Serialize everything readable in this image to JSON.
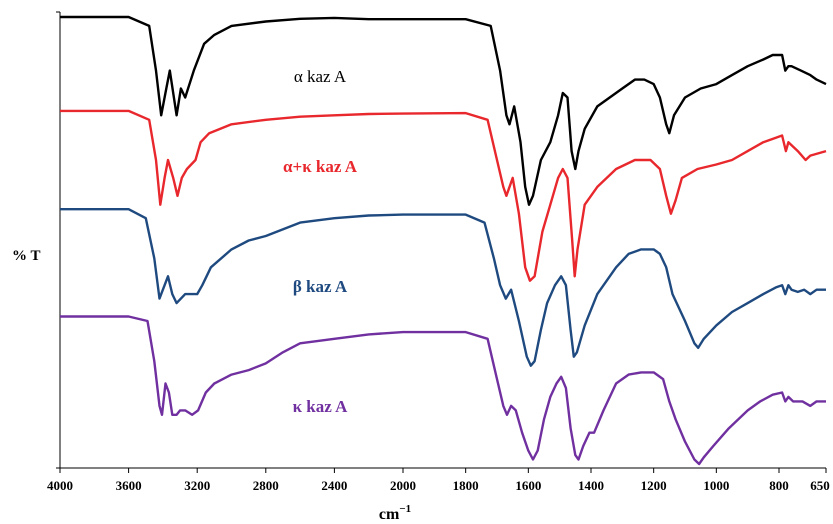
{
  "chart_data": {
    "type": "line",
    "xlabel": "cm",
    "xlabel_sup": "−1",
    "ylabel": "% T",
    "xlim": [
      4000,
      650
    ],
    "x_ticks": [
      4000,
      3600,
      3200,
      2800,
      2400,
      2000,
      1800,
      1600,
      1400,
      1200,
      1000,
      800,
      650
    ],
    "grid": false,
    "series": [
      {
        "name": "α kaz A",
        "color": "#000000",
        "label_weight": "normal",
        "values": [
          [
            4000,
            100
          ],
          [
            3600,
            100
          ],
          [
            3480,
            98
          ],
          [
            3440,
            88
          ],
          [
            3410,
            78
          ],
          [
            3380,
            84
          ],
          [
            3360,
            88
          ],
          [
            3320,
            78
          ],
          [
            3295,
            84
          ],
          [
            3270,
            82
          ],
          [
            3220,
            88
          ],
          [
            3160,
            94
          ],
          [
            3100,
            96
          ],
          [
            3000,
            98
          ],
          [
            2800,
            99
          ],
          [
            2600,
            99.6
          ],
          [
            2400,
            99.8
          ],
          [
            2200,
            99.5
          ],
          [
            2000,
            99.5
          ],
          [
            1800,
            99.5
          ],
          [
            1720,
            98
          ],
          [
            1690,
            88
          ],
          [
            1670,
            78
          ],
          [
            1660,
            76
          ],
          [
            1645,
            80
          ],
          [
            1625,
            72
          ],
          [
            1610,
            62
          ],
          [
            1598,
            58
          ],
          [
            1585,
            60
          ],
          [
            1560,
            68
          ],
          [
            1530,
            72
          ],
          [
            1505,
            78
          ],
          [
            1490,
            83
          ],
          [
            1475,
            82
          ],
          [
            1462,
            70
          ],
          [
            1450,
            66
          ],
          [
            1440,
            70
          ],
          [
            1420,
            75
          ],
          [
            1380,
            80
          ],
          [
            1300,
            84
          ],
          [
            1260,
            86
          ],
          [
            1230,
            86
          ],
          [
            1200,
            85
          ],
          [
            1180,
            82
          ],
          [
            1160,
            76
          ],
          [
            1150,
            74
          ],
          [
            1135,
            78
          ],
          [
            1100,
            82
          ],
          [
            1050,
            84
          ],
          [
            1000,
            85
          ],
          [
            950,
            87
          ],
          [
            900,
            89
          ],
          [
            850,
            90.5
          ],
          [
            820,
            91.5
          ],
          [
            790,
            91.5
          ],
          [
            780,
            88
          ],
          [
            770,
            89
          ],
          [
            760,
            89
          ],
          [
            730,
            88
          ],
          [
            700,
            87
          ],
          [
            680,
            86
          ],
          [
            650,
            85
          ]
        ]
      },
      {
        "name": "α+κ kaz A",
        "color": "#e8282d",
        "label_weight": "bold",
        "values": [
          [
            4000,
            79
          ],
          [
            3600,
            79
          ],
          [
            3480,
            77
          ],
          [
            3440,
            68
          ],
          [
            3415,
            58
          ],
          [
            3390,
            64
          ],
          [
            3370,
            68
          ],
          [
            3340,
            64
          ],
          [
            3315,
            60
          ],
          [
            3290,
            64
          ],
          [
            3260,
            66
          ],
          [
            3210,
            68
          ],
          [
            3180,
            72
          ],
          [
            3130,
            74
          ],
          [
            3000,
            76
          ],
          [
            2800,
            77
          ],
          [
            2600,
            77.7
          ],
          [
            2400,
            78
          ],
          [
            2200,
            78.3
          ],
          [
            2000,
            78.4
          ],
          [
            1800,
            78.5
          ],
          [
            1730,
            77
          ],
          [
            1700,
            68
          ],
          [
            1680,
            62
          ],
          [
            1670,
            60
          ],
          [
            1650,
            64
          ],
          [
            1630,
            56
          ],
          [
            1610,
            44
          ],
          [
            1595,
            41
          ],
          [
            1580,
            42
          ],
          [
            1555,
            52
          ],
          [
            1530,
            58
          ],
          [
            1505,
            64
          ],
          [
            1490,
            66
          ],
          [
            1475,
            64
          ],
          [
            1460,
            50
          ],
          [
            1452,
            42
          ],
          [
            1443,
            48
          ],
          [
            1420,
            58
          ],
          [
            1380,
            62
          ],
          [
            1320,
            66
          ],
          [
            1260,
            68
          ],
          [
            1210,
            68
          ],
          [
            1180,
            66
          ],
          [
            1160,
            60
          ],
          [
            1145,
            56
          ],
          [
            1130,
            59
          ],
          [
            1110,
            64
          ],
          [
            1060,
            66
          ],
          [
            1000,
            67
          ],
          [
            950,
            68
          ],
          [
            900,
            70
          ],
          [
            850,
            72
          ],
          [
            810,
            73
          ],
          [
            790,
            73.5
          ],
          [
            778,
            70
          ],
          [
            770,
            72
          ],
          [
            740,
            70
          ],
          [
            715,
            68
          ],
          [
            700,
            69
          ],
          [
            650,
            70
          ]
        ]
      },
      {
        "name": "β kaz A",
        "color": "#1f4a80",
        "label_weight": "bold",
        "values": [
          [
            4000,
            57
          ],
          [
            3600,
            57
          ],
          [
            3500,
            55
          ],
          [
            3450,
            46
          ],
          [
            3420,
            37
          ],
          [
            3390,
            40
          ],
          [
            3370,
            42
          ],
          [
            3345,
            38
          ],
          [
            3320,
            36
          ],
          [
            3295,
            37
          ],
          [
            3270,
            38
          ],
          [
            3200,
            38
          ],
          [
            3170,
            40
          ],
          [
            3120,
            44
          ],
          [
            3000,
            48
          ],
          [
            2900,
            50
          ],
          [
            2800,
            51
          ],
          [
            2600,
            54
          ],
          [
            2400,
            55
          ],
          [
            2200,
            55.6
          ],
          [
            2000,
            55.8
          ],
          [
            1800,
            55.8
          ],
          [
            1740,
            54
          ],
          [
            1710,
            46
          ],
          [
            1690,
            40
          ],
          [
            1672,
            37
          ],
          [
            1655,
            39
          ],
          [
            1630,
            32
          ],
          [
            1605,
            24
          ],
          [
            1592,
            22
          ],
          [
            1580,
            23
          ],
          [
            1560,
            30
          ],
          [
            1540,
            36
          ],
          [
            1515,
            40
          ],
          [
            1495,
            42
          ],
          [
            1480,
            40
          ],
          [
            1465,
            30
          ],
          [
            1455,
            24
          ],
          [
            1445,
            25
          ],
          [
            1420,
            31
          ],
          [
            1380,
            38
          ],
          [
            1320,
            44
          ],
          [
            1280,
            47
          ],
          [
            1240,
            48
          ],
          [
            1200,
            48
          ],
          [
            1180,
            47
          ],
          [
            1160,
            44
          ],
          [
            1140,
            38
          ],
          [
            1100,
            32
          ],
          [
            1070,
            27
          ],
          [
            1058,
            26
          ],
          [
            1040,
            28
          ],
          [
            1000,
            31
          ],
          [
            950,
            34
          ],
          [
            900,
            36
          ],
          [
            850,
            38
          ],
          [
            810,
            39.5
          ],
          [
            790,
            40
          ],
          [
            780,
            38
          ],
          [
            770,
            40
          ],
          [
            760,
            39
          ],
          [
            740,
            38.5
          ],
          [
            720,
            39
          ],
          [
            700,
            38
          ],
          [
            680,
            39
          ],
          [
            650,
            39
          ]
        ]
      },
      {
        "name": "κ kaz A",
        "color": "#7030a0",
        "label_weight": "bold",
        "values": [
          [
            4000,
            33
          ],
          [
            3600,
            33
          ],
          [
            3490,
            32
          ],
          [
            3450,
            23
          ],
          [
            3420,
            13
          ],
          [
            3405,
            11
          ],
          [
            3385,
            18
          ],
          [
            3365,
            16
          ],
          [
            3345,
            11
          ],
          [
            3320,
            11
          ],
          [
            3300,
            12
          ],
          [
            3270,
            12
          ],
          [
            3230,
            11
          ],
          [
            3195,
            12
          ],
          [
            3150,
            16
          ],
          [
            3100,
            18
          ],
          [
            3000,
            20
          ],
          [
            2900,
            21
          ],
          [
            2800,
            22.5
          ],
          [
            2700,
            25
          ],
          [
            2600,
            27
          ],
          [
            2400,
            28
          ],
          [
            2200,
            29
          ],
          [
            2000,
            29.5
          ],
          [
            1800,
            29.5
          ],
          [
            1730,
            28
          ],
          [
            1700,
            19
          ],
          [
            1680,
            13
          ],
          [
            1668,
            11
          ],
          [
            1655,
            13
          ],
          [
            1640,
            12
          ],
          [
            1620,
            7
          ],
          [
            1600,
            3
          ],
          [
            1585,
            1
          ],
          [
            1570,
            3
          ],
          [
            1550,
            10
          ],
          [
            1530,
            15
          ],
          [
            1510,
            18
          ],
          [
            1495,
            19.5
          ],
          [
            1480,
            17
          ],
          [
            1465,
            8
          ],
          [
            1450,
            2
          ],
          [
            1440,
            1
          ],
          [
            1425,
            4
          ],
          [
            1405,
            7
          ],
          [
            1390,
            7
          ],
          [
            1360,
            12
          ],
          [
            1320,
            18
          ],
          [
            1280,
            20
          ],
          [
            1240,
            20.5
          ],
          [
            1200,
            20.5
          ],
          [
            1170,
            19
          ],
          [
            1150,
            14
          ],
          [
            1130,
            10
          ],
          [
            1100,
            5
          ],
          [
            1070,
            1
          ],
          [
            1055,
            0
          ],
          [
            1040,
            1.5
          ],
          [
            1010,
            4
          ],
          [
            960,
            8
          ],
          [
            900,
            12
          ],
          [
            860,
            14
          ],
          [
            820,
            15.5
          ],
          [
            790,
            16
          ],
          [
            780,
            14
          ],
          [
            770,
            15
          ],
          [
            755,
            14
          ],
          [
            740,
            14
          ],
          [
            725,
            14
          ],
          [
            700,
            13
          ],
          [
            680,
            14
          ],
          [
            650,
            14
          ]
        ]
      }
    ]
  }
}
